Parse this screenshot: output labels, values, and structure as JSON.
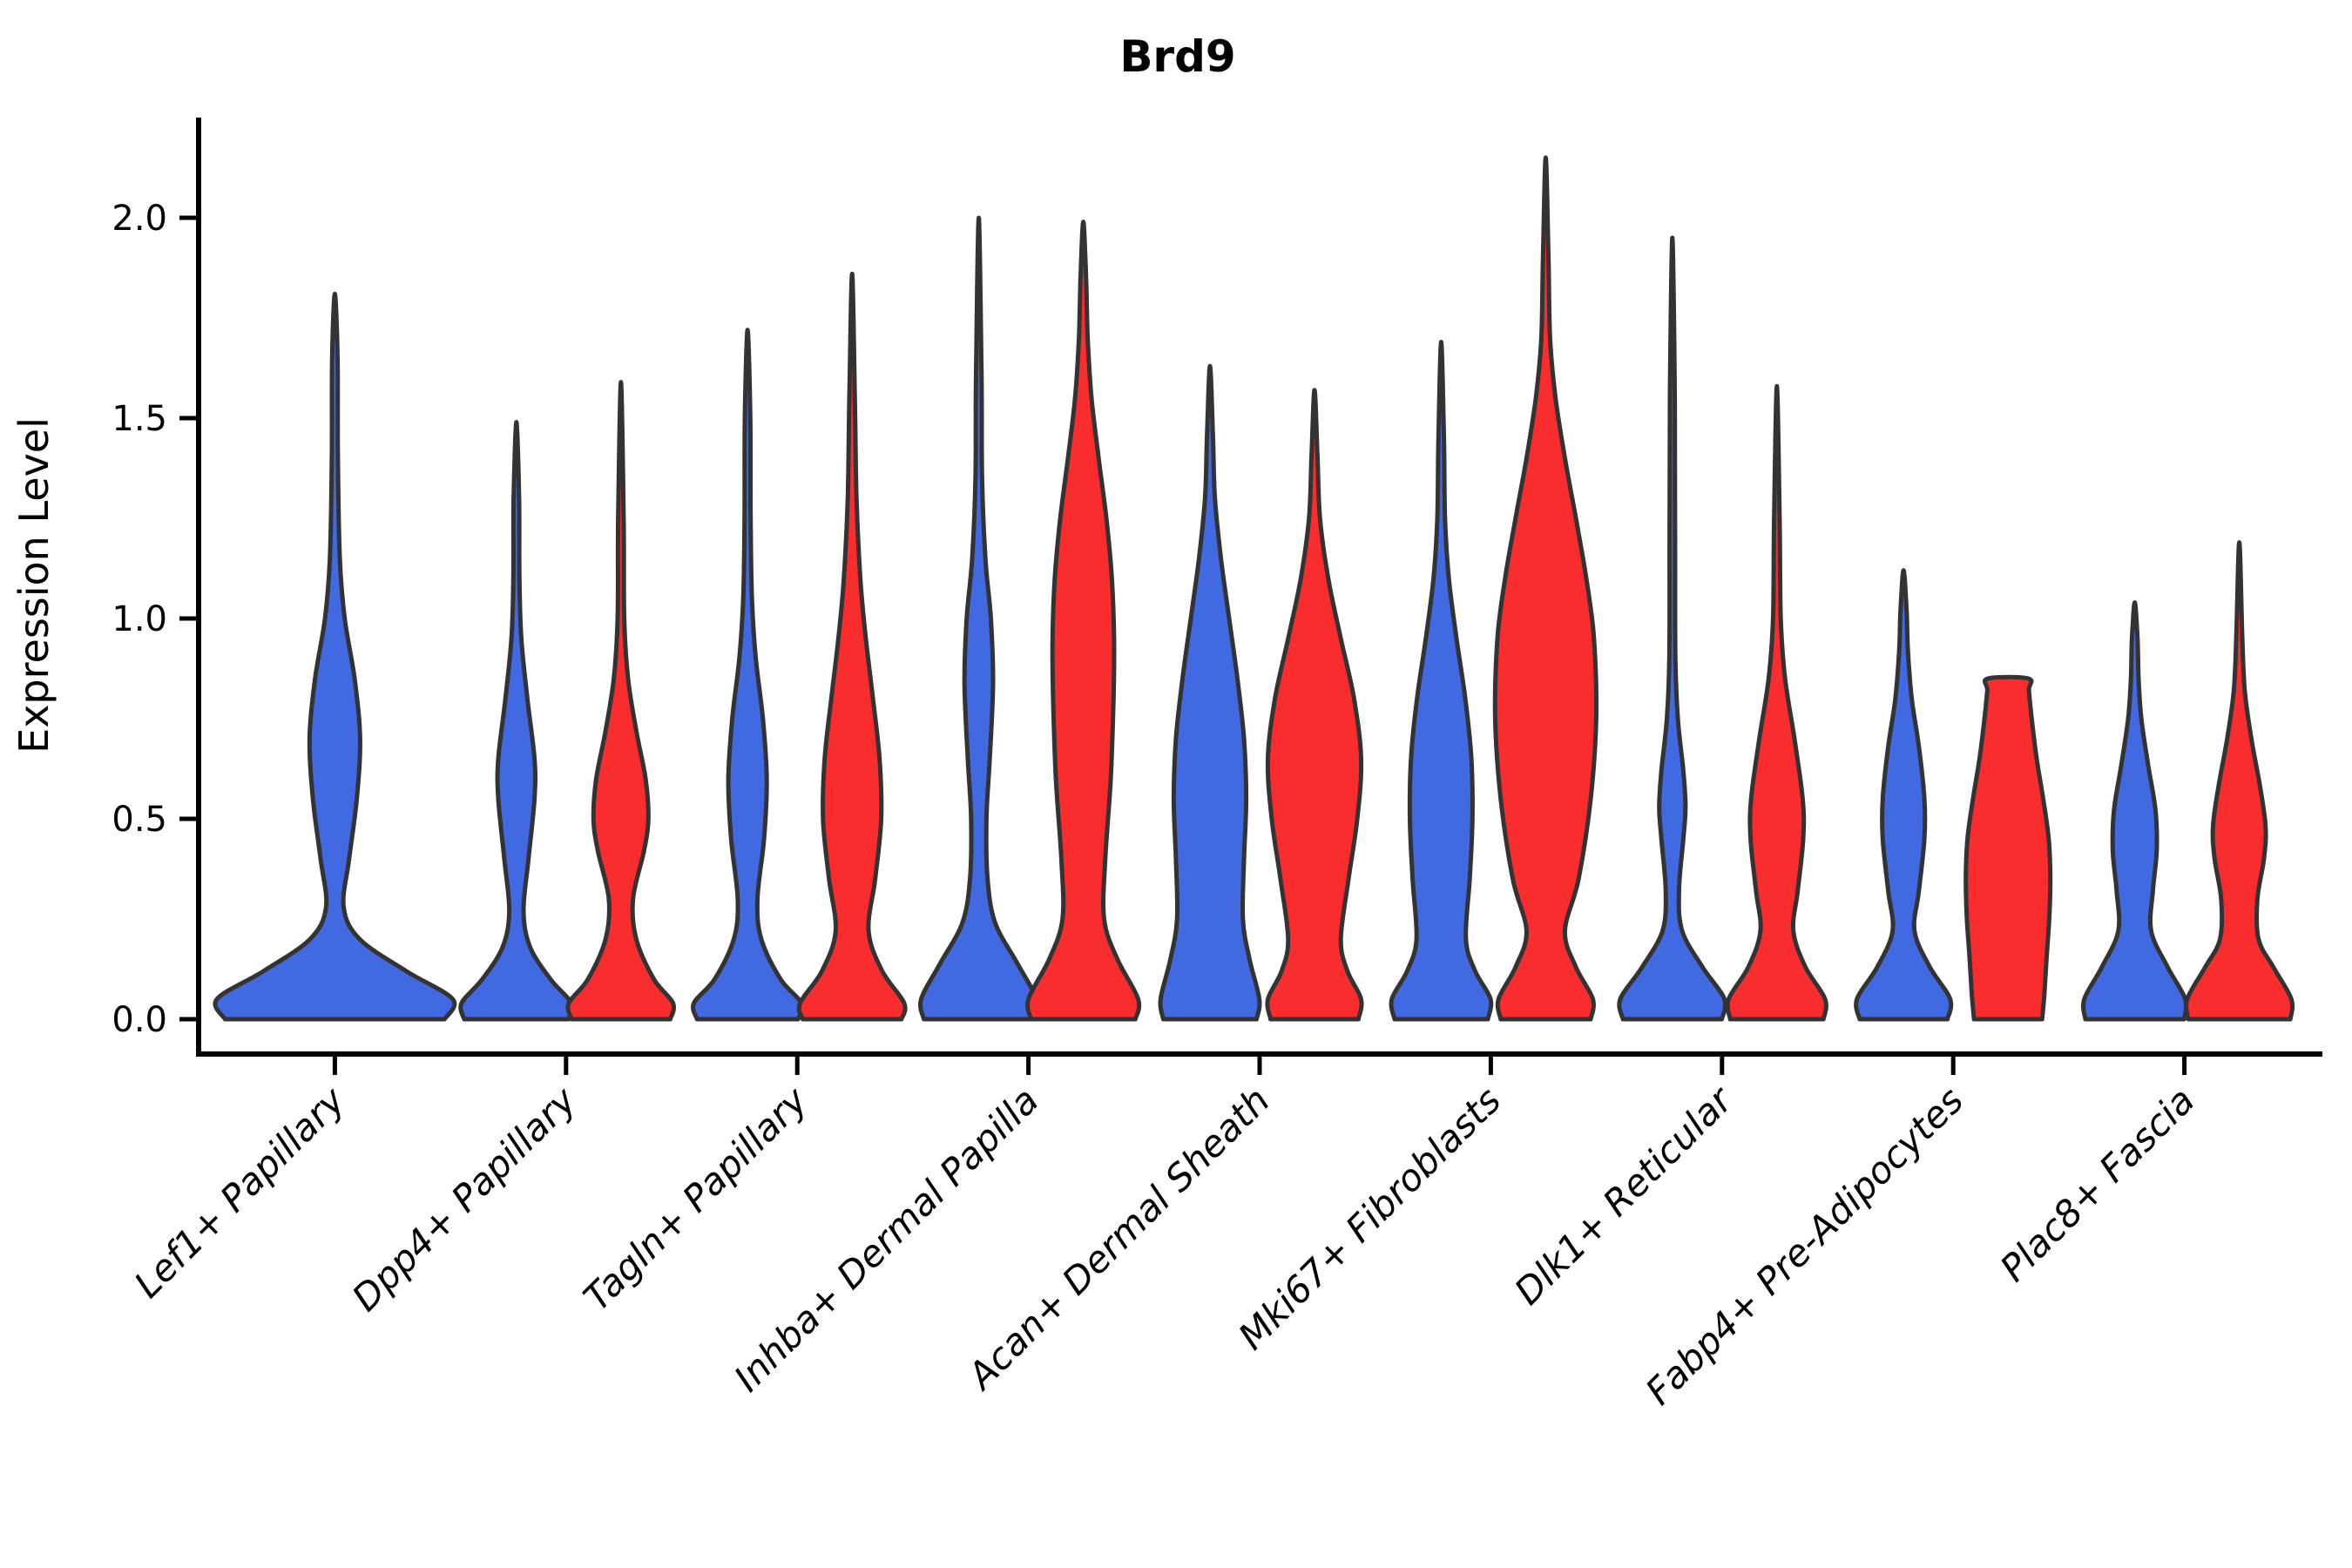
{
  "figure": {
    "title": "Brd9",
    "y_axis_label": "Expression Level"
  },
  "chart_data": {
    "type": "violin",
    "title": "Brd9",
    "xlabel": "",
    "ylabel": "Expression Level",
    "ylim": [
      0,
      2.25
    ],
    "grid": false,
    "legend_position": "none",
    "y_tick_labels": [
      "0.0",
      "0.5",
      "1.0",
      "1.5",
      "2.0"
    ],
    "y_tick_values": [
      0.0,
      0.5,
      1.0,
      1.5,
      2.0
    ],
    "background": "#FFFFFF",
    "stroke_color": "#333333",
    "categories": [
      "Lef1+ Papillary",
      "Dpp4+ Papillary",
      "Tagln+ Papillary",
      "Inhba+ Dermal Papilla",
      "Acan+ Dermal Sheath",
      "Mki67+ Fibroblasts",
      "Dlk1+ Reticular",
      "Fabp4+ Pre-Adipocytes",
      "Plac8+ Fascia"
    ],
    "series": [
      {
        "name": "blue",
        "color": "#4169E1",
        "violins": [
          {
            "max": 1.81,
            "flat_top": false,
            "centered": true,
            "profile": [
              [
                0,
                2.0
              ],
              [
                0.05,
                2.15
              ],
              [
                0.12,
                1.3
              ],
              [
                0.2,
                0.45
              ],
              [
                0.28,
                0.16
              ],
              [
                0.4,
                0.26
              ],
              [
                0.55,
                0.4
              ],
              [
                0.7,
                0.46
              ],
              [
                0.85,
                0.36
              ],
              [
                1.0,
                0.18
              ],
              [
                1.15,
                0.09
              ],
              [
                1.4,
                0.055
              ],
              [
                1.65,
                0.05
              ],
              [
                1.81,
                0
              ]
            ]
          },
          {
            "max": 1.49,
            "flat_top": false,
            "profile": [
              [
                0,
                0.95
              ],
              [
                0.04,
                1.0
              ],
              [
                0.1,
                0.62
              ],
              [
                0.18,
                0.25
              ],
              [
                0.27,
                0.13
              ],
              [
                0.4,
                0.22
              ],
              [
                0.55,
                0.33
              ],
              [
                0.65,
                0.33
              ],
              [
                0.8,
                0.2
              ],
              [
                0.95,
                0.09
              ],
              [
                1.1,
                0.055
              ],
              [
                1.3,
                0.05
              ],
              [
                1.49,
                0
              ]
            ]
          },
          {
            "max": 1.72,
            "flat_top": false,
            "profile": [
              [
                0,
                0.92
              ],
              [
                0.04,
                0.98
              ],
              [
                0.1,
                0.6
              ],
              [
                0.2,
                0.25
              ],
              [
                0.3,
                0.18
              ],
              [
                0.45,
                0.3
              ],
              [
                0.6,
                0.35
              ],
              [
                0.75,
                0.28
              ],
              [
                0.9,
                0.15
              ],
              [
                1.05,
                0.08
              ],
              [
                1.25,
                0.055
              ],
              [
                1.5,
                0.05
              ],
              [
                1.72,
                0
              ]
            ]
          },
          {
            "max": 2.0,
            "flat_top": false,
            "profile": [
              [
                0,
                1.0
              ],
              [
                0.05,
                1.05
              ],
              [
                0.14,
                0.7
              ],
              [
                0.24,
                0.3
              ],
              [
                0.35,
                0.16
              ],
              [
                0.5,
                0.14
              ],
              [
                0.65,
                0.2
              ],
              [
                0.84,
                0.26
              ],
              [
                1.0,
                0.22
              ],
              [
                1.15,
                0.12
              ],
              [
                1.35,
                0.06
              ],
              [
                1.6,
                0.05
              ],
              [
                2.0,
                0
              ]
            ]
          },
          {
            "max": 1.63,
            "flat_top": false,
            "profile": [
              [
                0,
                0.85
              ],
              [
                0.05,
                0.9
              ],
              [
                0.15,
                0.72
              ],
              [
                0.25,
                0.6
              ],
              [
                0.4,
                0.62
              ],
              [
                0.55,
                0.66
              ],
              [
                0.7,
                0.62
              ],
              [
                0.85,
                0.5
              ],
              [
                1.0,
                0.35
              ],
              [
                1.15,
                0.2
              ],
              [
                1.3,
                0.09
              ],
              [
                1.45,
                0.055
              ],
              [
                1.63,
                0
              ]
            ]
          },
          {
            "max": 1.69,
            "flat_top": false,
            "profile": [
              [
                0,
                0.85
              ],
              [
                0.05,
                0.9
              ],
              [
                0.12,
                0.62
              ],
              [
                0.2,
                0.45
              ],
              [
                0.35,
                0.52
              ],
              [
                0.5,
                0.57
              ],
              [
                0.65,
                0.55
              ],
              [
                0.8,
                0.44
              ],
              [
                0.95,
                0.28
              ],
              [
                1.1,
                0.14
              ],
              [
                1.25,
                0.07
              ],
              [
                1.45,
                0.05
              ],
              [
                1.69,
                0
              ]
            ]
          },
          {
            "max": 1.95,
            "flat_top": false,
            "profile": [
              [
                0,
                0.9
              ],
              [
                0.05,
                0.95
              ],
              [
                0.13,
                0.55
              ],
              [
                0.22,
                0.18
              ],
              [
                0.32,
                0.12
              ],
              [
                0.45,
                0.2
              ],
              [
                0.53,
                0.24
              ],
              [
                0.62,
                0.2
              ],
              [
                0.75,
                0.1
              ],
              [
                0.9,
                0.055
              ],
              [
                1.2,
                0.05
              ],
              [
                1.55,
                0.045
              ],
              [
                1.95,
                0
              ]
            ]
          },
          {
            "max": 1.12,
            "flat_top": false,
            "profile": [
              [
                0,
                0.8
              ],
              [
                0.05,
                0.85
              ],
              [
                0.13,
                0.48
              ],
              [
                0.22,
                0.2
              ],
              [
                0.32,
                0.28
              ],
              [
                0.45,
                0.38
              ],
              [
                0.55,
                0.38
              ],
              [
                0.68,
                0.28
              ],
              [
                0.8,
                0.15
              ],
              [
                0.92,
                0.08
              ],
              [
                1.02,
                0.055
              ],
              [
                1.12,
                0
              ]
            ]
          },
          {
            "max": 1.04,
            "flat_top": false,
            "profile": [
              [
                0,
                0.9
              ],
              [
                0.05,
                0.92
              ],
              [
                0.13,
                0.6
              ],
              [
                0.22,
                0.3
              ],
              [
                0.32,
                0.33
              ],
              [
                0.42,
                0.4
              ],
              [
                0.52,
                0.38
              ],
              [
                0.63,
                0.25
              ],
              [
                0.75,
                0.12
              ],
              [
                0.85,
                0.07
              ],
              [
                0.95,
                0.05
              ],
              [
                1.04,
                0
              ]
            ]
          }
        ]
      },
      {
        "name": "red",
        "color": "#F92D2D",
        "violins": [
          null,
          {
            "max": 1.59,
            "flat_top": false,
            "profile": [
              [
                0,
                0.9
              ],
              [
                0.04,
                0.95
              ],
              [
                0.1,
                0.6
              ],
              [
                0.2,
                0.28
              ],
              [
                0.3,
                0.22
              ],
              [
                0.42,
                0.42
              ],
              [
                0.5,
                0.5
              ],
              [
                0.6,
                0.45
              ],
              [
                0.72,
                0.28
              ],
              [
                0.85,
                0.13
              ],
              [
                1.0,
                0.06
              ],
              [
                1.25,
                0.05
              ],
              [
                1.59,
                0
              ]
            ]
          },
          {
            "max": 1.86,
            "flat_top": false,
            "profile": [
              [
                0,
                0.9
              ],
              [
                0.04,
                0.95
              ],
              [
                0.12,
                0.55
              ],
              [
                0.22,
                0.3
              ],
              [
                0.35,
                0.42
              ],
              [
                0.5,
                0.53
              ],
              [
                0.65,
                0.5
              ],
              [
                0.8,
                0.38
              ],
              [
                0.95,
                0.25
              ],
              [
                1.1,
                0.15
              ],
              [
                1.3,
                0.08
              ],
              [
                1.55,
                0.05
              ],
              [
                1.86,
                0
              ]
            ]
          },
          {
            "max": 1.99,
            "flat_top": false,
            "profile": [
              [
                0,
                0.95
              ],
              [
                0.05,
                1.0
              ],
              [
                0.15,
                0.62
              ],
              [
                0.25,
                0.38
              ],
              [
                0.4,
                0.4
              ],
              [
                0.6,
                0.5
              ],
              [
                0.8,
                0.55
              ],
              [
                0.95,
                0.56
              ],
              [
                1.1,
                0.52
              ],
              [
                1.25,
                0.42
              ],
              [
                1.4,
                0.28
              ],
              [
                1.55,
                0.15
              ],
              [
                1.7,
                0.08
              ],
              [
                1.85,
                0.05
              ],
              [
                1.99,
                0
              ]
            ]
          },
          {
            "max": 1.57,
            "flat_top": false,
            "profile": [
              [
                0,
                0.8
              ],
              [
                0.05,
                0.85
              ],
              [
                0.12,
                0.6
              ],
              [
                0.2,
                0.48
              ],
              [
                0.35,
                0.62
              ],
              [
                0.5,
                0.78
              ],
              [
                0.65,
                0.85
              ],
              [
                0.8,
                0.72
              ],
              [
                0.95,
                0.48
              ],
              [
                1.1,
                0.25
              ],
              [
                1.25,
                0.1
              ],
              [
                1.4,
                0.055
              ],
              [
                1.57,
                0
              ]
            ]
          },
          {
            "max": 2.15,
            "flat_top": false,
            "profile": [
              [
                0,
                0.82
              ],
              [
                0.05,
                0.86
              ],
              [
                0.13,
                0.55
              ],
              [
                0.22,
                0.35
              ],
              [
                0.35,
                0.6
              ],
              [
                0.55,
                0.82
              ],
              [
                0.75,
                0.92
              ],
              [
                0.95,
                0.88
              ],
              [
                1.1,
                0.74
              ],
              [
                1.25,
                0.55
              ],
              [
                1.4,
                0.35
              ],
              [
                1.55,
                0.18
              ],
              [
                1.7,
                0.08
              ],
              [
                1.9,
                0.05
              ],
              [
                2.15,
                0
              ]
            ]
          },
          {
            "max": 1.58,
            "flat_top": false,
            "profile": [
              [
                0,
                0.85
              ],
              [
                0.05,
                0.88
              ],
              [
                0.13,
                0.52
              ],
              [
                0.22,
                0.3
              ],
              [
                0.32,
                0.38
              ],
              [
                0.45,
                0.48
              ],
              [
                0.55,
                0.47
              ],
              [
                0.7,
                0.32
              ],
              [
                0.85,
                0.15
              ],
              [
                1.0,
                0.07
              ],
              [
                1.25,
                0.05
              ],
              [
                1.58,
                0
              ]
            ]
          },
          {
            "max": 0.85,
            "flat_top": true,
            "profile": [
              [
                0,
                0.62
              ],
              [
                0.06,
                0.66
              ],
              [
                0.15,
                0.7
              ],
              [
                0.25,
                0.75
              ],
              [
                0.35,
                0.77
              ],
              [
                0.45,
                0.74
              ],
              [
                0.55,
                0.64
              ],
              [
                0.65,
                0.52
              ],
              [
                0.75,
                0.43
              ],
              [
                0.82,
                0.38
              ],
              [
                0.85,
                0.37
              ]
            ]
          },
          {
            "max": 1.19,
            "flat_top": false,
            "profile": [
              [
                0,
                0.93
              ],
              [
                0.05,
                0.95
              ],
              [
                0.13,
                0.62
              ],
              [
                0.2,
                0.35
              ],
              [
                0.3,
                0.33
              ],
              [
                0.4,
                0.45
              ],
              [
                0.48,
                0.48
              ],
              [
                0.58,
                0.38
              ],
              [
                0.7,
                0.22
              ],
              [
                0.82,
                0.1
              ],
              [
                0.95,
                0.055
              ],
              [
                1.19,
                0
              ]
            ]
          }
        ]
      }
    ]
  }
}
